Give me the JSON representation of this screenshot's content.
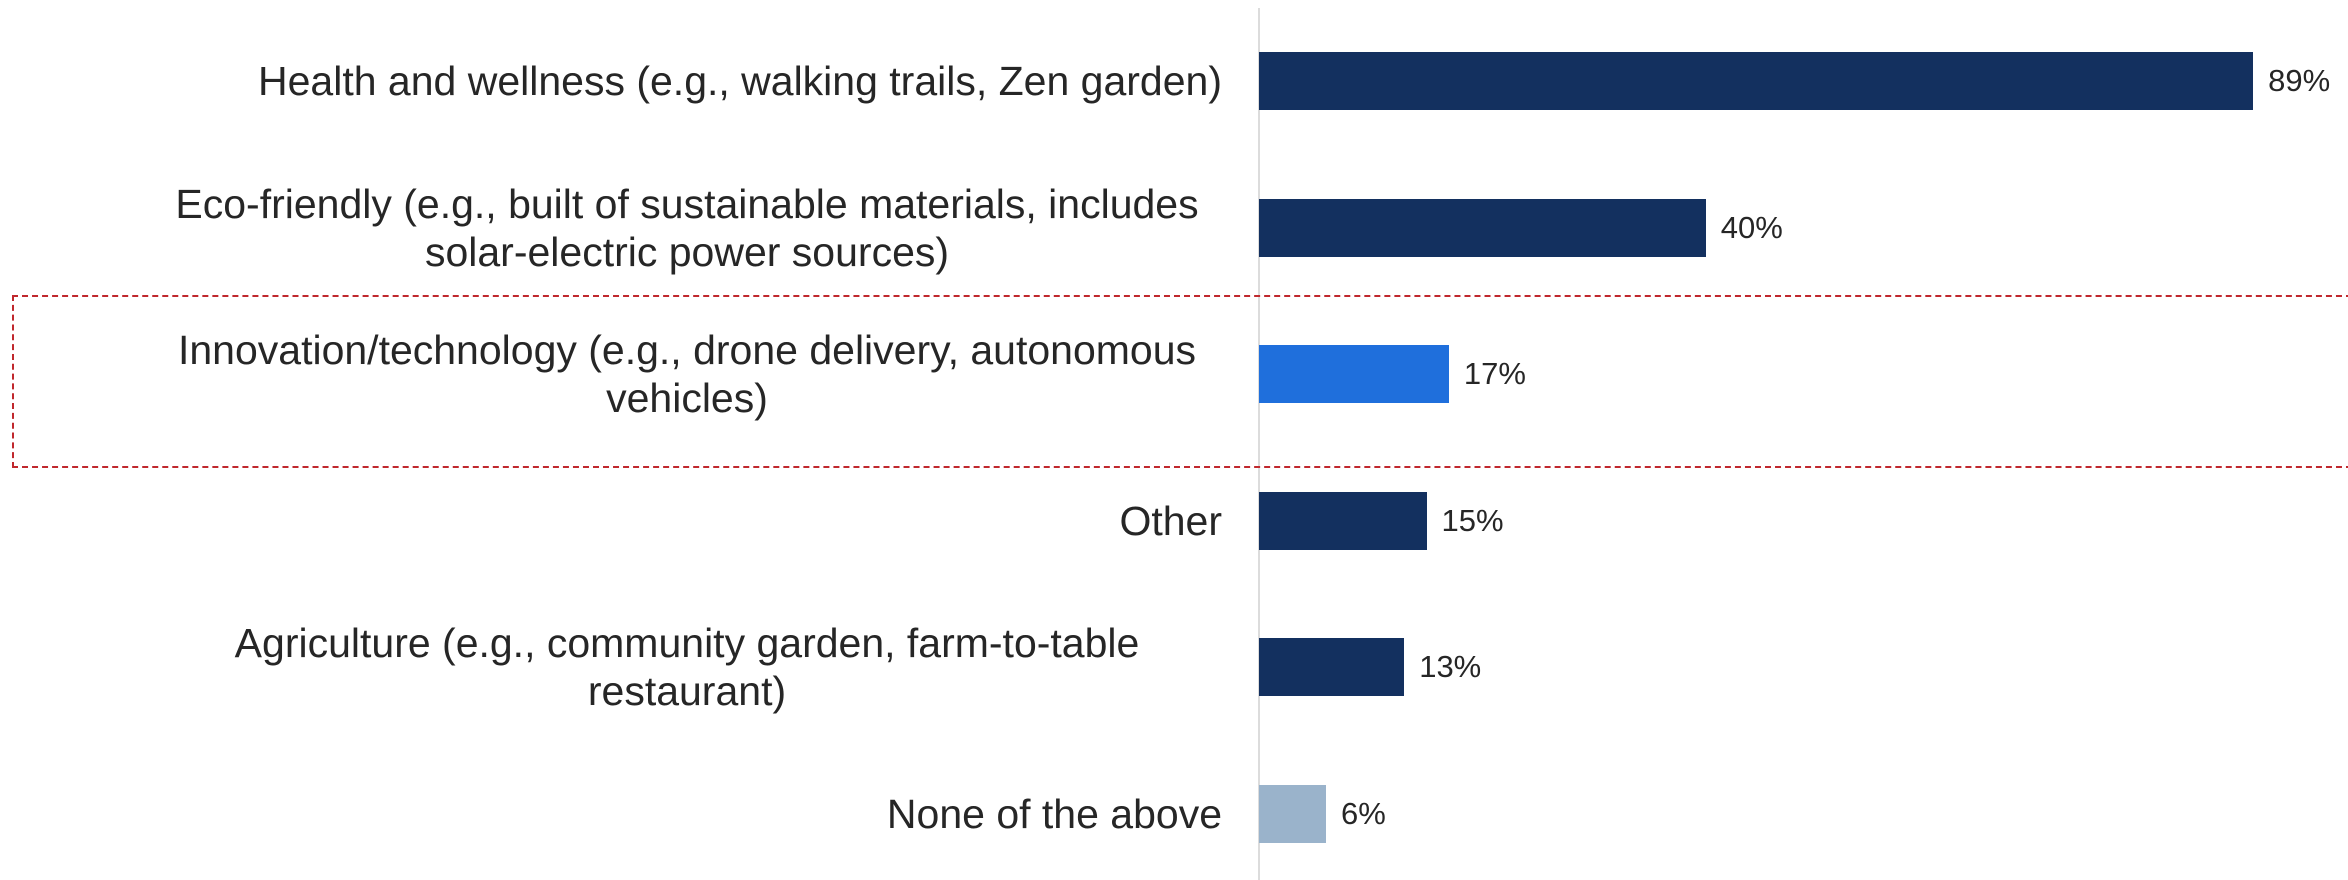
{
  "chart_data": {
    "type": "bar",
    "orientation": "horizontal",
    "categories": [
      "Health and wellness (e.g., walking trails, Zen garden)",
      "Eco-friendly (e.g., built of sustainable materials, includes solar-electric power sources)",
      "Innovation/technology (e.g., drone delivery, autonomous vehicles)",
      "Other",
      "Agriculture (e.g., community garden, farm-to-table restaurant)",
      "None of the above"
    ],
    "values": [
      89,
      40,
      17,
      15,
      13,
      6
    ],
    "value_labels": [
      "89%",
      "40%",
      "17%",
      "15%",
      "13%",
      "6%"
    ],
    "colors": [
      "#13305f",
      "#13305f",
      "#1f6fdc",
      "#13305f",
      "#13305f",
      "#9ab3cb"
    ]
  }
}
